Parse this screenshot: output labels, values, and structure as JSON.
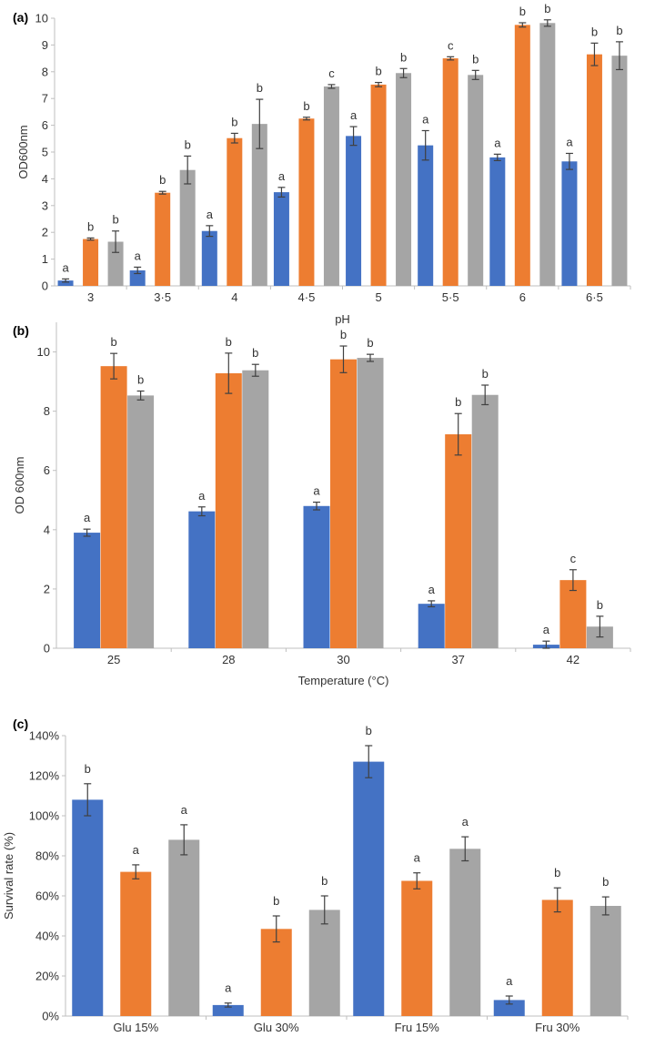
{
  "colors": {
    "series": [
      "#4472C4",
      "#ED7D31",
      "#A5A5A5"
    ],
    "axis": "#BFBFBF",
    "error_bar": "#404040",
    "text": "#333333"
  },
  "chart_data": [
    {
      "type": "bar",
      "panel_label": "(a)",
      "xlabel": "pH",
      "ylabel": "OD600nm",
      "ylim": [
        0,
        10
      ],
      "y_ticks": [
        "0",
        "1",
        "2",
        "3",
        "4",
        "5",
        "6",
        "7",
        "8",
        "9",
        "10"
      ],
      "categories": [
        "3",
        "3·5",
        "4",
        "4·5",
        "5",
        "5·5",
        "6",
        "6·5"
      ],
      "series": [
        {
          "values": [
            0.2,
            0.58,
            2.05,
            3.5,
            5.6,
            5.25,
            4.8,
            4.65
          ],
          "errors": [
            0.06,
            0.12,
            0.2,
            0.18,
            0.35,
            0.55,
            0.12,
            0.3
          ],
          "letters": [
            "a",
            "a",
            "a",
            "a",
            "a",
            "a",
            "a",
            "a"
          ]
        },
        {
          "values": [
            1.75,
            3.48,
            5.52,
            6.25,
            7.52,
            8.5,
            9.75,
            8.65
          ],
          "errors": [
            0.04,
            0.05,
            0.18,
            0.05,
            0.08,
            0.06,
            0.08,
            0.42
          ],
          "letters": [
            "b",
            "b",
            "b",
            "b",
            "b",
            "c",
            "b",
            "b"
          ]
        },
        {
          "values": [
            1.65,
            4.33,
            6.05,
            7.45,
            7.95,
            7.88,
            9.82,
            8.6
          ],
          "errors": [
            0.4,
            0.52,
            0.92,
            0.07,
            0.17,
            0.17,
            0.12,
            0.52
          ],
          "letters": [
            "b",
            "b",
            "b",
            "c",
            "b",
            "b",
            "b",
            "b"
          ]
        }
      ]
    },
    {
      "type": "bar",
      "panel_label": "(b)",
      "xlabel": "Temperature (°C)",
      "ylabel": "OD 600nm",
      "ylim": [
        0,
        11
      ],
      "y_ticks": [
        "0",
        "2",
        "4",
        "6",
        "8",
        "10"
      ],
      "categories": [
        "25",
        "28",
        "30",
        "37",
        "42"
      ],
      "series": [
        {
          "values": [
            3.9,
            4.62,
            4.8,
            1.5,
            0.12
          ],
          "errors": [
            0.12,
            0.15,
            0.13,
            0.1,
            0.12
          ],
          "letters": [
            "a",
            "a",
            "a",
            "a",
            "a"
          ]
        },
        {
          "values": [
            9.52,
            9.28,
            9.75,
            7.22,
            2.3
          ],
          "errors": [
            0.43,
            0.68,
            0.45,
            0.7,
            0.35
          ],
          "letters": [
            "b",
            "b",
            "b",
            "b",
            "c"
          ]
        },
        {
          "values": [
            8.53,
            9.38,
            9.8,
            8.55,
            0.73
          ],
          "errors": [
            0.15,
            0.2,
            0.12,
            0.33,
            0.35
          ],
          "letters": [
            "b",
            "b",
            "b",
            "b",
            "b"
          ]
        }
      ]
    },
    {
      "type": "bar",
      "panel_label": "(c)",
      "xlabel": "",
      "ylabel": "Survival rate (%)",
      "ylim": [
        0,
        140
      ],
      "y_ticks": [
        "0%",
        "20%",
        "40%",
        "60%",
        "80%",
        "100%",
        "120%",
        "140%"
      ],
      "categories": [
        "Glu 15%",
        "Glu 30%",
        "Fru 15%",
        "Fru 30%"
      ],
      "series": [
        {
          "values": [
            108,
            5.5,
            127,
            8
          ],
          "errors": [
            8,
            1,
            8,
            2
          ],
          "letters": [
            "b",
            "a",
            "b",
            "a"
          ]
        },
        {
          "values": [
            72,
            43.5,
            67.5,
            58
          ],
          "errors": [
            3.5,
            6.5,
            4,
            6
          ],
          "letters": [
            "a",
            "b",
            "a",
            "b"
          ]
        },
        {
          "values": [
            88,
            53,
            83.5,
            55
          ],
          "errors": [
            7.5,
            7,
            6,
            4.5
          ],
          "letters": [
            "a",
            "b",
            "a",
            "b"
          ]
        }
      ]
    }
  ]
}
